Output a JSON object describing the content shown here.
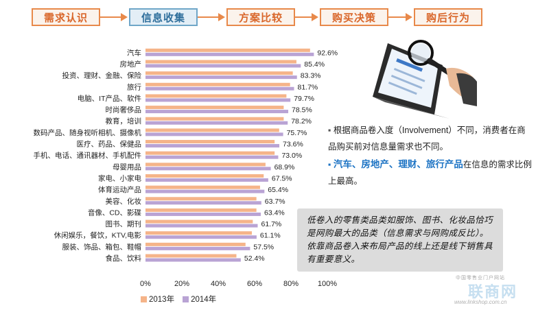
{
  "flow": {
    "steps": [
      {
        "label": "需求认识",
        "active": false
      },
      {
        "label": "信息收集",
        "active": true
      },
      {
        "label": "方案比较",
        "active": false
      },
      {
        "label": "购买决策",
        "active": false
      },
      {
        "label": "购后行为",
        "active": false
      }
    ]
  },
  "chart_data": {
    "type": "bar",
    "orientation": "horizontal",
    "categories": [
      "汽车",
      "房地产",
      "投资、理财、金融、保险",
      "旅行",
      "电脑、IT产品、软件",
      "时尚奢侈品",
      "教育，培训",
      "数码产品、随身视听相机、摄像机",
      "医疗、药品、保健品",
      "手机、电话、通讯器材、手机配件",
      "母婴用品",
      "家电、小家电",
      "体育运动产品",
      "美容、化妆",
      "音像、CD、影碟",
      "图书、期刊",
      "休闲娱乐，餐饮，KTV,电影",
      "服装、饰品、箱包、鞋帽",
      "食品、饮料"
    ],
    "series": [
      {
        "name": "2013年",
        "color": "#f5b489",
        "values": [
          90.5,
          83.0,
          81.0,
          79.5,
          77.5,
          76.0,
          76.0,
          73.5,
          71.0,
          71.0,
          66.0,
          65.0,
          63.0,
          61.0,
          61.0,
          59.0,
          58.5,
          55.0,
          50.0
        ]
      },
      {
        "name": "2014年",
        "color": "#b9a3d4",
        "values": [
          92.6,
          85.4,
          83.3,
          81.7,
          79.7,
          78.5,
          78.2,
          75.7,
          73.6,
          73.0,
          68.9,
          67.5,
          65.4,
          63.7,
          63.4,
          61.7,
          61.1,
          57.5,
          52.4
        ]
      }
    ],
    "data_labels": [
      "92.6%",
      "85.4%",
      "83.3%",
      "81.7%",
      "79.7%",
      "78.5%",
      "78.2%",
      "75.7%",
      "73.6%",
      "73.0%",
      "68.9%",
      "67.5%",
      "65.4%",
      "63.7%",
      "63.4%",
      "61.7%",
      "61.1%",
      "57.5%",
      "52.4%"
    ],
    "xlim": [
      0,
      100
    ],
    "xticks": [
      "0%",
      "20%",
      "40%",
      "60%",
      "80%",
      "100%"
    ],
    "legend_position": "bottom-left",
    "grid": false
  },
  "bullets": {
    "b1_text": "根据商品卷入度（Involvement）不同，消费者在商品购买前对信息量需求也不同。",
    "b2_highlight": "汽车、房地产、理财、旅行产品",
    "b2_rest": "在信息的需求比例上最高。"
  },
  "note": {
    "text": "低卷入的零售类品类如服饰、图书、化妆品恰巧是网购最大的品类（信息需求与网购成反比）。依靠商品卷入来布局产品的线上还是线下销售具有重要意义。"
  },
  "logo": {
    "top_text": "中国零售业门户网站",
    "mark_text": "联商网",
    "url_text": "www.linkshop.com.cn"
  },
  "colors": {
    "flow_orange": "#e8894a",
    "flow_active_blue": "#6fa6c8",
    "highlight_blue": "#1e74c4"
  }
}
